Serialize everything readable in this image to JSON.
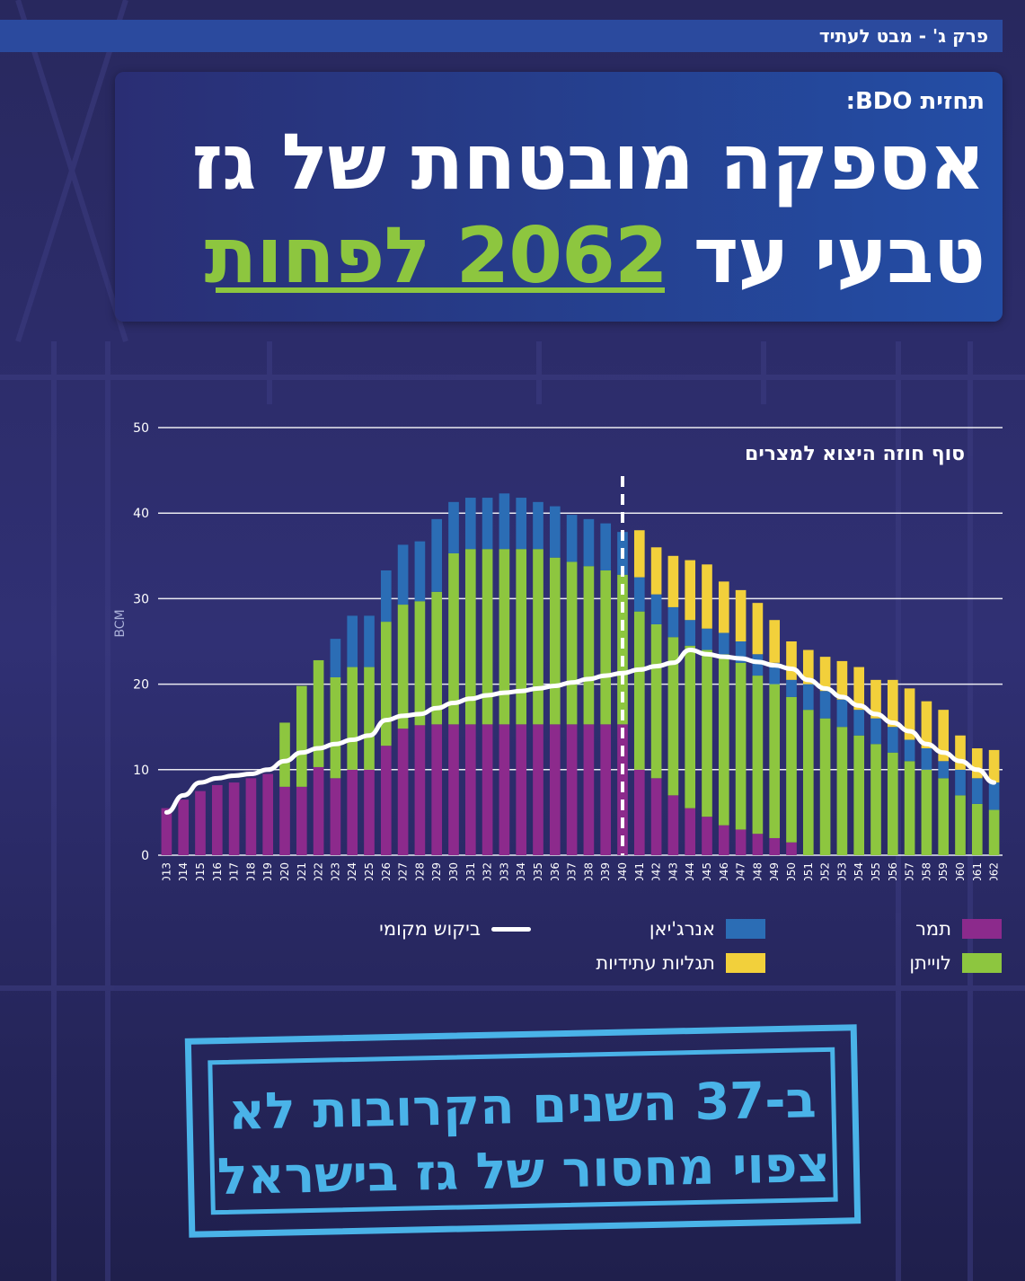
{
  "section_tag": "פרק ג' - מבט לעתיד",
  "kicker": "תחזית BDO:",
  "headline": {
    "line1": "אספקה מובטחת של גז",
    "line2_prefix": "טבעי עד ",
    "line2_highlight": "2062 לפחות"
  },
  "colors": {
    "background": "#2a2a66",
    "tamar": "#8c2a8c",
    "leviathan": "#8dc63f",
    "energean": "#2b6db5",
    "future": "#f2d03b",
    "demand": "#ffffff",
    "stamp": "#4ab3e8"
  },
  "chart_data": {
    "type": "bar",
    "stacked": true,
    "ylabel": "BCM",
    "ylim": [
      0,
      50
    ],
    "yticks": [
      0,
      10,
      20,
      30,
      40,
      50
    ],
    "annotation": "סוף חוזה היצוא למצרים",
    "annotation_year": "2040",
    "categories": [
      "2013",
      "2014",
      "2015",
      "2016",
      "2017",
      "2018",
      "2019",
      "2020",
      "2021",
      "2022",
      "2023",
      "2024",
      "2025",
      "2026",
      "2027",
      "2028",
      "2029",
      "2030",
      "2031",
      "2032",
      "2033",
      "2034",
      "2035",
      "2036",
      "2037",
      "2038",
      "2039",
      "2040",
      "2041",
      "2042",
      "2043",
      "2044",
      "2045",
      "2046",
      "2047",
      "2048",
      "2049",
      "2050",
      "2051",
      "2052",
      "2053",
      "2054",
      "2055",
      "2056",
      "2057",
      "2058",
      "2059",
      "2060",
      "2061",
      "2062"
    ],
    "series": [
      {
        "name": "תמר",
        "color": "#8c2a8c",
        "values": [
          5.5,
          6.5,
          7.5,
          8.2,
          8.5,
          9,
          9.5,
          8,
          8,
          10.3,
          9,
          10,
          10,
          12.8,
          14.8,
          15.2,
          15.3,
          15.3,
          15.3,
          15.3,
          15.3,
          15.3,
          15.3,
          15.3,
          15.3,
          15.3,
          15.3,
          15.3,
          10,
          9,
          7,
          5.5,
          4.5,
          3.5,
          3,
          2.5,
          2,
          1.5,
          0,
          0,
          0,
          0,
          0,
          0,
          0,
          0,
          0,
          0,
          0,
          0
        ]
      },
      {
        "name": "לוייתן",
        "color": "#8dc63f",
        "values": [
          0,
          0,
          0,
          0,
          0,
          0,
          0,
          7.5,
          11.8,
          12.5,
          11.8,
          12,
          12,
          14.5,
          14.5,
          14.5,
          15.5,
          20,
          20.5,
          20.5,
          20.5,
          20.5,
          20.5,
          19.5,
          19,
          18.5,
          18,
          17.5,
          18.5,
          18,
          18.5,
          19,
          19.5,
          20,
          19.5,
          18.5,
          18,
          17,
          17,
          16,
          15,
          14,
          13,
          12,
          11,
          10,
          9,
          7,
          6,
          5.3
        ]
      },
      {
        "name": "אנרג'יאן",
        "color": "#2b6db5",
        "values": [
          0,
          0,
          0,
          0,
          0,
          0,
          0,
          0,
          0,
          0,
          4.5,
          6,
          6,
          6,
          7,
          7,
          8.5,
          6,
          6,
          6,
          6.5,
          6,
          5.5,
          6,
          5.5,
          5.5,
          5.5,
          5,
          4,
          3.5,
          3.5,
          3,
          2.5,
          2.5,
          2.5,
          2.5,
          2.5,
          2,
          3,
          3.2,
          3.2,
          3,
          3,
          3,
          2.5,
          2.5,
          2,
          3,
          3,
          3.2
        ]
      },
      {
        "name": "תגליות עתידיות",
        "color": "#f2d03b",
        "values": [
          0,
          0,
          0,
          0,
          0,
          0,
          0,
          0,
          0,
          0,
          0,
          0,
          0,
          0,
          0,
          0,
          0,
          0,
          0,
          0,
          0,
          0,
          0,
          0,
          0,
          0,
          0,
          0,
          5.5,
          5.5,
          6,
          7,
          7.5,
          6,
          6,
          6,
          5,
          4.5,
          4,
          4,
          4.5,
          5,
          4.5,
          5.5,
          6,
          5.5,
          6,
          4,
          3.5,
          3.8
        ]
      }
    ],
    "line_series": {
      "name": "ביקוש מקומי",
      "color": "#ffffff",
      "values": [
        5,
        7,
        8.5,
        9,
        9.3,
        9.5,
        10,
        11,
        12,
        12.5,
        13,
        13.5,
        14,
        15.8,
        16.3,
        16.5,
        17.2,
        17.8,
        18.3,
        18.7,
        19,
        19.2,
        19.5,
        19.8,
        20.2,
        20.6,
        21,
        21.3,
        21.7,
        22.1,
        22.5,
        24,
        23.5,
        23.2,
        23,
        22.6,
        22.2,
        21.8,
        20.5,
        19.5,
        18.5,
        17.5,
        16.5,
        15.5,
        14.5,
        13,
        12,
        11,
        10,
        8.5
      ]
    }
  },
  "legend": {
    "tamar": "תמר",
    "leviathan": "לוייתן",
    "energean": "אנרג'יאן",
    "future": "תגליות עתידיות",
    "demand": "ביקוש מקומי"
  },
  "stamp": {
    "line1": "ב-37 השנים הקרובות לא",
    "line2": "צפוי מחסור של גז בישראל"
  }
}
